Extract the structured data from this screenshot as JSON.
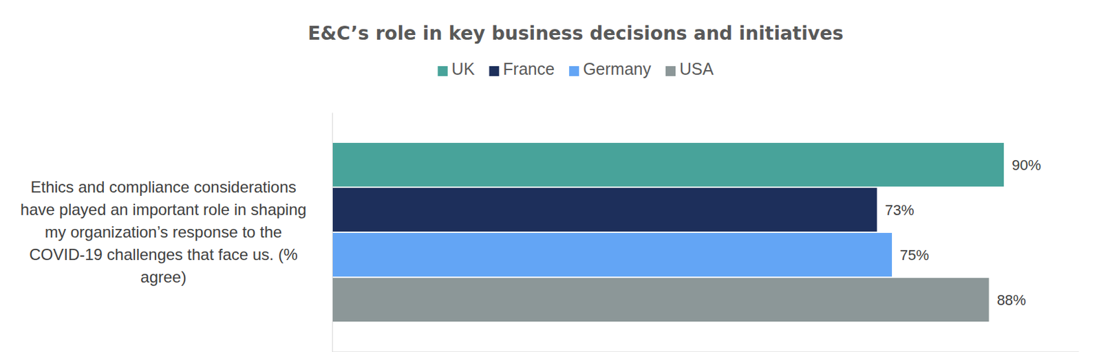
{
  "chart_data": {
    "type": "bar",
    "orientation": "horizontal",
    "title": "E&C’s role in key business decisions and initiatives",
    "categories": [
      "Ethics and compliance considerations have played an important role in shaping my organization’s response to the COVID-19 challenges that face us. (% agree)"
    ],
    "series": [
      {
        "name": "UK",
        "color": "#48a39a",
        "values": [
          90
        ],
        "value_labels": [
          "90%"
        ]
      },
      {
        "name": "France",
        "color": "#1d2f5b",
        "values": [
          73
        ],
        "value_labels": [
          "73%"
        ]
      },
      {
        "name": "Germany",
        "color": "#63a5f5",
        "values": [
          75
        ],
        "value_labels": [
          "75%"
        ]
      },
      {
        "name": "USA",
        "color": "#8c9798",
        "values": [
          88
        ],
        "value_labels": [
          "88%"
        ]
      }
    ],
    "xlim": [
      0,
      100
    ],
    "xticks": [],
    "data_labels": true,
    "tick_labels": "y",
    "legend": "top",
    "grid": false
  }
}
